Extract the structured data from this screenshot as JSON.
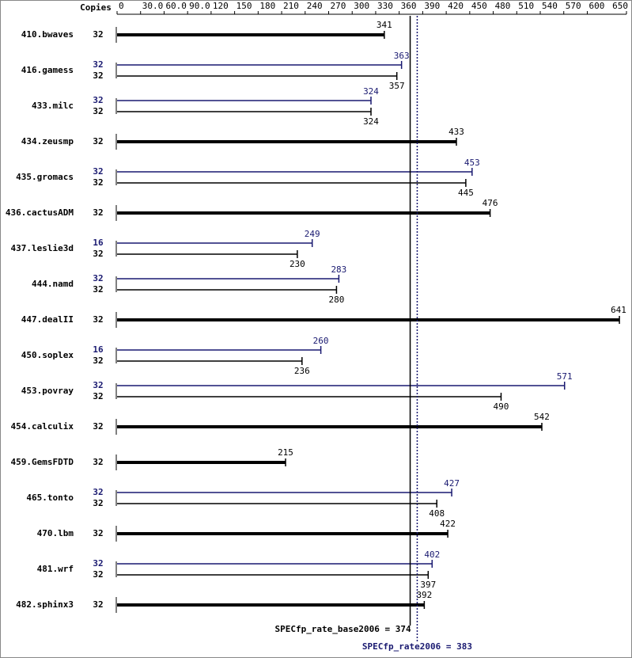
{
  "chart_data": {
    "type": "bar",
    "orientation": "horizontal",
    "copies_header": "Copies",
    "categories": [
      "410.bwaves",
      "416.gamess",
      "433.milc",
      "434.zeusmp",
      "435.gromacs",
      "436.cactusADM",
      "437.leslie3d",
      "444.namd",
      "447.dealII",
      "450.soplex",
      "453.povray",
      "454.calculix",
      "459.GemsFDTD",
      "465.tonto",
      "470.lbm",
      "481.wrf",
      "482.sphinx3"
    ],
    "series": [
      {
        "color": "#191970",
        "copies": [
          null,
          32,
          32,
          null,
          32,
          null,
          16,
          32,
          null,
          16,
          32,
          null,
          null,
          32,
          null,
          32,
          null
        ],
        "values": [
          null,
          363,
          324,
          null,
          453,
          null,
          249,
          283,
          null,
          260,
          571,
          null,
          null,
          427,
          null,
          402,
          null
        ]
      },
      {
        "color": "#000000",
        "copies": [
          32,
          32,
          32,
          32,
          32,
          32,
          32,
          32,
          32,
          32,
          32,
          32,
          32,
          32,
          32,
          32,
          32
        ],
        "values": [
          341,
          357,
          324,
          433,
          445,
          476,
          230,
          280,
          641,
          236,
          490,
          542,
          215,
          408,
          422,
          397,
          392
        ]
      }
    ],
    "xlim": [
      0,
      650
    ],
    "xticks": [
      0,
      {
        "value": 30,
        "label": "30.0"
      },
      {
        "value": 60,
        "label": "60.0"
      },
      {
        "value": 90,
        "label": "90.0"
      },
      120,
      150,
      180,
      210,
      240,
      270,
      300,
      330,
      360,
      390,
      420,
      450,
      480,
      510,
      540,
      570,
      600,
      650
    ],
    "reference_lines": [
      {
        "label": "SPECfp_rate_base2006 = 374",
        "value": 374,
        "color": "#000000",
        "style": "solid"
      },
      {
        "label": "SPECfp_rate2006 = 383",
        "value": 383,
        "color": "#191970",
        "style": "dotted"
      }
    ]
  }
}
